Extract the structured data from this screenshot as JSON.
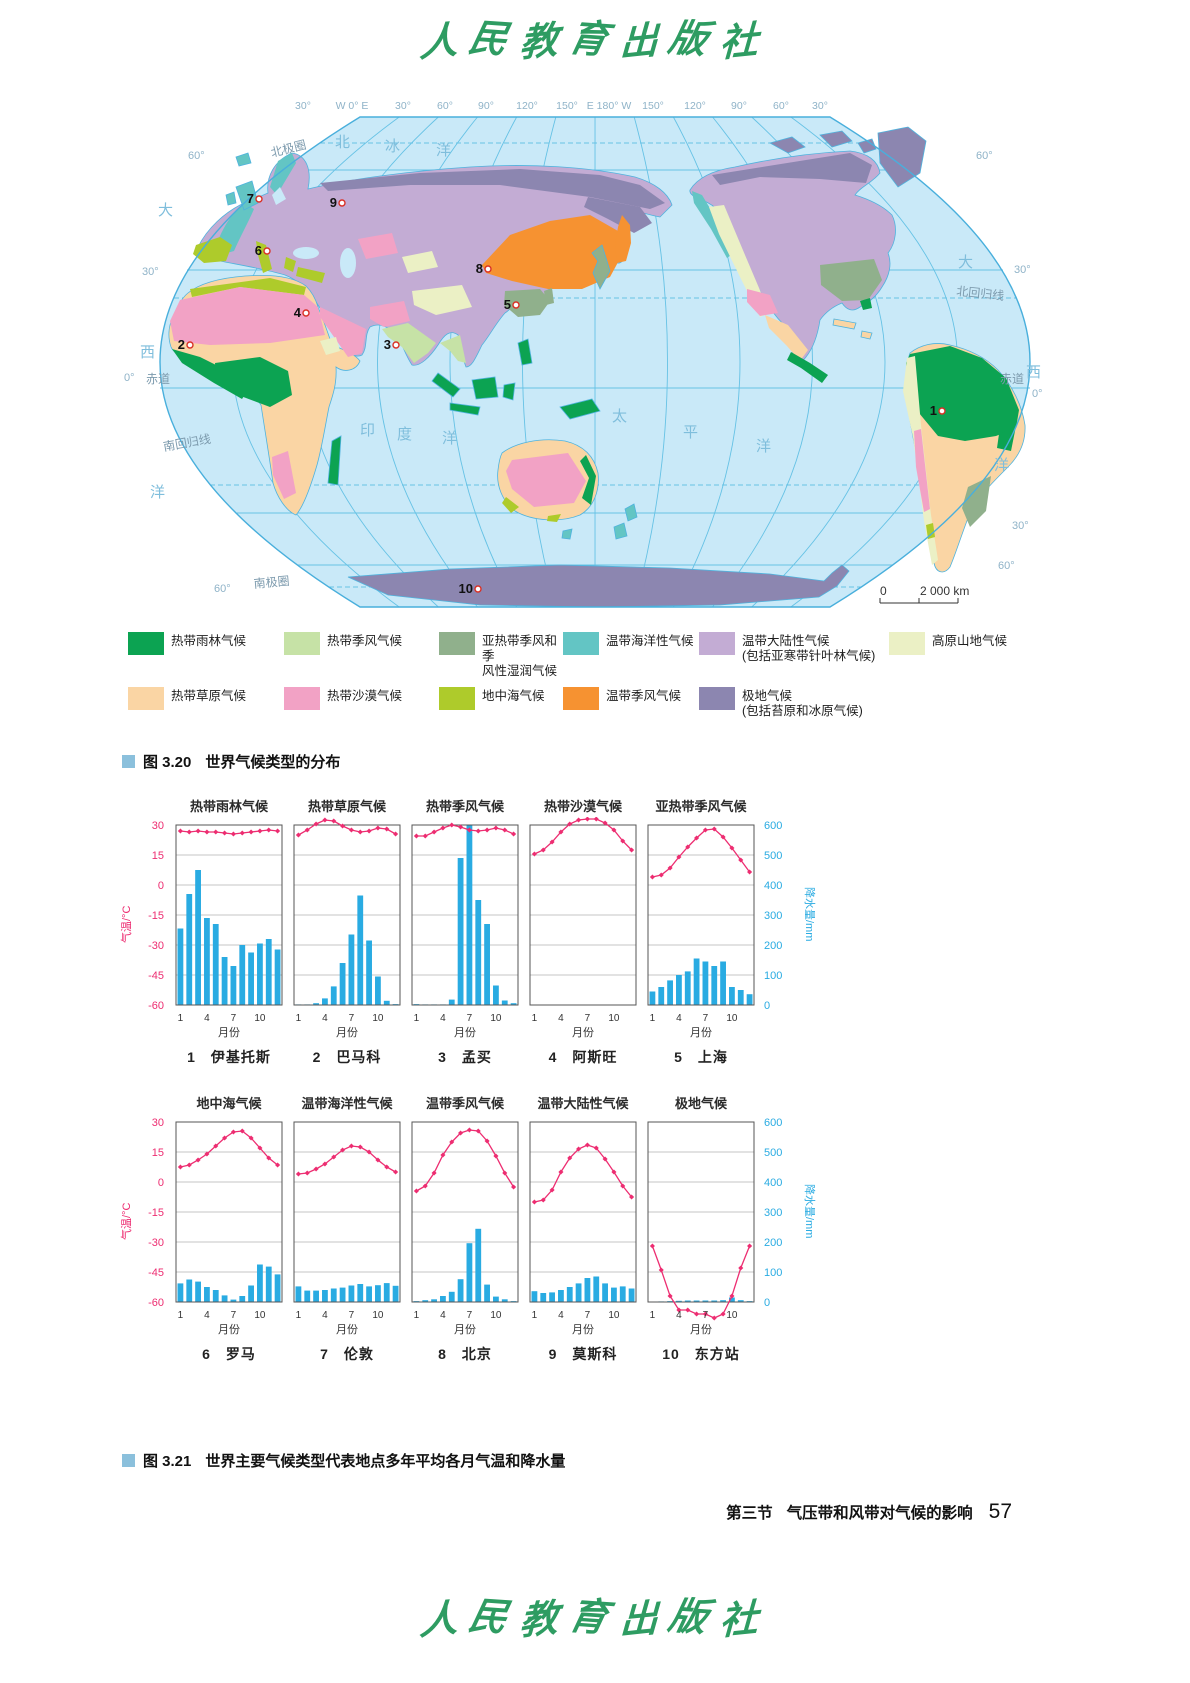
{
  "page": {
    "logo_text": "人民教育出版社",
    "footer": {
      "section_label": "第三节",
      "section_title": "气压带和风带对气候的影响",
      "page_number": "57"
    }
  },
  "figure_3_20": {
    "caption_fig": "图 3.20",
    "caption_text": "世界气候类型的分布",
    "scale_zero": "0",
    "scale_label": "2 000 km",
    "longitude_labels": [
      "30°",
      "W 0° E",
      "30°",
      "60°",
      "90°",
      "120°",
      "150°",
      "E 180° W",
      "150°",
      "120°",
      "90°",
      "60°",
      "30°"
    ],
    "latitude_labels": [
      "60°",
      "30°",
      "0°",
      "60°",
      "60°",
      "30°",
      "0°",
      "30°",
      "60°"
    ],
    "line_labels": {
      "arctic_circle": "北极圈",
      "equator_left": "赤道",
      "equator_right": "赤道",
      "tropic_of_cancer": "北回归线",
      "tropic_of_capricorn": "南回归线",
      "antarctic_circle": "南极圈"
    },
    "ocean_labels": {
      "arctic": "北冰洋",
      "atlantic_left": "大西洋",
      "atlantic_right": "大西洋",
      "pacific": "太平洋",
      "indian": "印度洋"
    },
    "station_numbers": [
      "1",
      "2",
      "3",
      "4",
      "5",
      "6",
      "7",
      "8",
      "9",
      "10"
    ]
  },
  "legend": {
    "rows": [
      [
        {
          "key": "rainforest",
          "label": "热带雨林气候",
          "color": "#0CA352"
        },
        {
          "key": "tropical_monsoon",
          "label": "热带季风气候",
          "color": "#C6E2A6"
        },
        {
          "key": "subtropical_monsoon",
          "label": "亚热带季风和季",
          "label2": "风性湿润气候",
          "color": "#90B08C"
        },
        {
          "key": "temperate_oceanic",
          "label": "温带海洋性气候",
          "color": "#63C5C4"
        },
        {
          "key": "temperate_continental",
          "label": "温带大陆性气候",
          "label2": "(包括亚寒带针叶林气候)",
          "color": "#C3ACD4"
        },
        {
          "key": "highland",
          "label": "高原山地气候",
          "color": "#EBF0C5"
        }
      ],
      [
        {
          "key": "savanna",
          "label": "热带草原气候",
          "color": "#FAD5A4"
        },
        {
          "key": "desert",
          "label": "热带沙漠气候",
          "color": "#F2A2C5"
        },
        {
          "key": "mediterranean",
          "label": "地中海气候",
          "color": "#AECB2B"
        },
        {
          "key": "temperate_monsoon",
          "label": "温带季风气候",
          "color": "#F69231"
        },
        {
          "key": "polar",
          "label": "极地气候",
          "label2": "(包括苔原和冰原气候)",
          "color": "#8C86B0"
        }
      ]
    ]
  },
  "figure_3_21": {
    "caption_fig": "图 3.21",
    "caption_text": "世界主要气候类型代表地点多年平均各月气温和降水量"
  },
  "chart_data": {
    "type": "bar",
    "note": "paired climographs: bars = monthly precipitation (mm), line = monthly temperature (°C)",
    "x_ticks": [
      "1",
      "4",
      "7",
      "10"
    ],
    "x_label": "月份",
    "temp_axis_label": "气温/°C",
    "temp_ticks": [
      "30",
      "15",
      "0",
      "-15",
      "-30",
      "-45",
      "-60"
    ],
    "precip_axis_label": "降水量/mm",
    "precip_ticks": [
      "600",
      "500",
      "400",
      "300",
      "200",
      "100",
      "0"
    ],
    "stations": [
      {
        "no": "1",
        "name": "伊基托斯",
        "climate": "热带雨林气候",
        "temp": [
          27,
          26.5,
          27,
          26.5,
          26.5,
          26,
          25.5,
          26,
          26.5,
          27,
          27.5,
          27
        ],
        "precip": [
          255,
          370,
          450,
          290,
          270,
          160,
          130,
          200,
          175,
          205,
          220,
          185
        ]
      },
      {
        "no": "2",
        "name": "巴马科",
        "climate": "热带草原气候",
        "temp": [
          25,
          27.5,
          30.5,
          32.5,
          32,
          29.5,
          27.5,
          26.5,
          27,
          28.5,
          28,
          25.5
        ],
        "precip": [
          2,
          2,
          6,
          22,
          62,
          140,
          235,
          365,
          215,
          95,
          14,
          3
        ]
      },
      {
        "no": "3",
        "name": "孟买",
        "climate": "热带季风气候",
        "temp": [
          24.5,
          24.5,
          26.5,
          28.5,
          30,
          29,
          27.5,
          27,
          27.5,
          28.5,
          27.5,
          25.5
        ],
        "precip": [
          3,
          2,
          2,
          2,
          18,
          490,
          600,
          350,
          270,
          65,
          15,
          6
        ]
      },
      {
        "no": "4",
        "name": "阿斯旺",
        "climate": "热带沙漠气候",
        "temp": [
          15.5,
          17.5,
          21.5,
          26.5,
          30.5,
          32.5,
          33,
          33,
          31,
          27.5,
          22,
          17.5
        ],
        "precip": [
          0,
          0,
          0,
          1,
          0,
          0,
          0,
          0,
          0,
          1,
          0,
          0
        ]
      },
      {
        "no": "5",
        "name": "上海",
        "climate": "亚热带季风气候",
        "temp": [
          4,
          5,
          8.5,
          14,
          19,
          23.5,
          27.5,
          28,
          24,
          18.5,
          12.5,
          6.5
        ],
        "precip": [
          45,
          60,
          82,
          100,
          112,
          155,
          145,
          130,
          145,
          60,
          50,
          36
        ]
      },
      {
        "no": "6",
        "name": "罗马",
        "climate": "地中海气候",
        "temp": [
          7.5,
          8.5,
          11,
          14,
          18,
          22,
          25,
          25.5,
          22,
          17,
          12,
          8.5
        ],
        "precip": [
          62,
          75,
          68,
          50,
          40,
          22,
          8,
          20,
          55,
          125,
          118,
          92
        ]
      },
      {
        "no": "7",
        "name": "伦敦",
        "climate": "温带海洋性气候",
        "temp": [
          4,
          4.5,
          6.5,
          9,
          12.5,
          16,
          18,
          17.5,
          15,
          11,
          7.5,
          5
        ],
        "precip": [
          52,
          38,
          38,
          40,
          45,
          48,
          55,
          60,
          52,
          56,
          63,
          54
        ]
      },
      {
        "no": "8",
        "name": "北京",
        "climate": "温带季风气候",
        "temp": [
          -4.5,
          -2,
          4.5,
          13.5,
          20,
          24.5,
          26,
          25.5,
          20.5,
          13,
          4.5,
          -2.5
        ],
        "precip": [
          3,
          6,
          9,
          20,
          34,
          76,
          196,
          244,
          58,
          18,
          9,
          3
        ]
      },
      {
        "no": "9",
        "name": "莫斯科",
        "climate": "温带大陆性气候",
        "temp": [
          -10,
          -9,
          -4,
          5,
          12,
          16.5,
          18.5,
          17,
          11.5,
          5,
          -2,
          -7.5
        ],
        "precip": [
          36,
          30,
          32,
          40,
          50,
          62,
          80,
          85,
          62,
          48,
          52,
          45
        ]
      },
      {
        "no": "10",
        "name": "东方站",
        "climate": "极地气候",
        "temp": [
          -32,
          -44,
          -57,
          -64,
          -64,
          -66,
          -66,
          -68,
          -66,
          -57,
          -43,
          -32
        ],
        "precip": [
          0,
          2,
          3,
          4,
          5,
          5,
          5,
          5,
          6,
          15,
          6,
          3
        ]
      }
    ]
  },
  "colors": {
    "ocean": "#C9E9F8",
    "graticule": "#66C2E5",
    "coastline": "#4FB3DE",
    "map_annotation": "#8FB3C8",
    "map_line_label": "#7C9AAD",
    "ocean_label": "#7FBEDC",
    "bar": "#29ABE2",
    "temp_line": "#ED2D71",
    "caption_square": "#8BC0DC",
    "logo_green": "#2E9C62",
    "station_marker": "#D93025"
  }
}
